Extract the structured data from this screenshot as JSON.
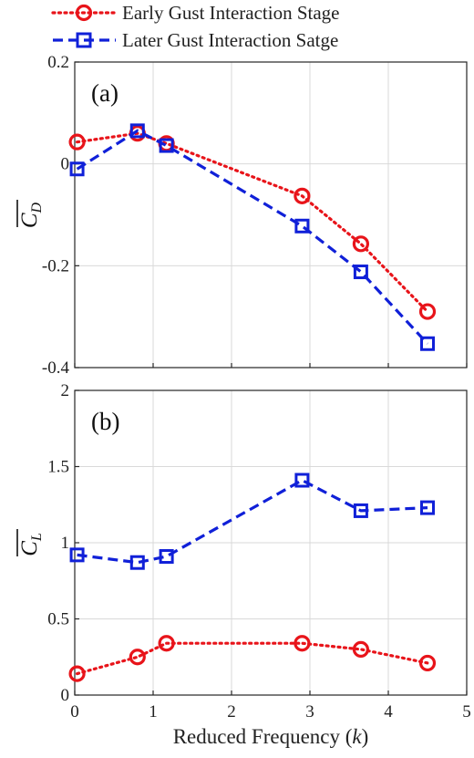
{
  "legend": {
    "items": [
      {
        "label": "Early Gust Interaction Stage",
        "color": "#e8141a",
        "marker": "circle",
        "dash": "dotted"
      },
      {
        "label": "Later Gust Interaction Satge",
        "color": "#1020d8",
        "marker": "square",
        "dash": "dashed"
      }
    ]
  },
  "xlabel_text": "Reduced Frequency (",
  "xlabel_var": "k",
  "xlabel_close": ")",
  "chart_data": [
    {
      "type": "line",
      "panel_label": "(a)",
      "ylabel": "C",
      "ylabel_sub": "D",
      "xlim": [
        0,
        5
      ],
      "ylim": [
        -0.4,
        0.2
      ],
      "xticks": [
        0,
        1,
        2,
        3,
        4,
        5
      ],
      "xtick_labels": [
        "0",
        "1",
        "2",
        "3",
        "4",
        "5"
      ],
      "yticks": [
        -0.4,
        -0.2,
        0,
        0.2
      ],
      "ytick_labels": [
        "-0.4",
        "-0.2",
        "0",
        "0.2"
      ],
      "grid": true,
      "x": [
        0.03,
        0.8,
        1.17,
        2.9,
        3.65,
        4.5
      ],
      "series": [
        {
          "name": "Early Gust Interaction Stage",
          "values": [
            0.043,
            0.06,
            0.04,
            -0.063,
            -0.157,
            -0.29
          ]
        },
        {
          "name": "Later Gust Interaction Satge",
          "values": [
            -0.01,
            0.065,
            0.036,
            -0.122,
            -0.212,
            -0.353
          ]
        }
      ]
    },
    {
      "type": "line",
      "panel_label": "(b)",
      "ylabel": "C",
      "ylabel_sub": "L",
      "xlim": [
        0,
        5
      ],
      "ylim": [
        0,
        2
      ],
      "xticks": [
        0,
        1,
        2,
        3,
        4,
        5
      ],
      "xtick_labels": [
        "0",
        "1",
        "2",
        "3",
        "4",
        "5"
      ],
      "yticks": [
        0,
        0.5,
        1,
        1.5,
        2
      ],
      "ytick_labels": [
        "0",
        "0.5",
        "1",
        "1.5",
        "2"
      ],
      "grid": true,
      "x": [
        0.03,
        0.8,
        1.17,
        2.9,
        3.65,
        4.5
      ],
      "series": [
        {
          "name": "Early Gust Interaction Stage",
          "values": [
            0.14,
            0.25,
            0.34,
            0.34,
            0.3,
            0.21
          ]
        },
        {
          "name": "Later Gust Interaction Satge",
          "values": [
            0.92,
            0.87,
            0.91,
            1.41,
            1.21,
            1.23
          ]
        }
      ]
    }
  ]
}
